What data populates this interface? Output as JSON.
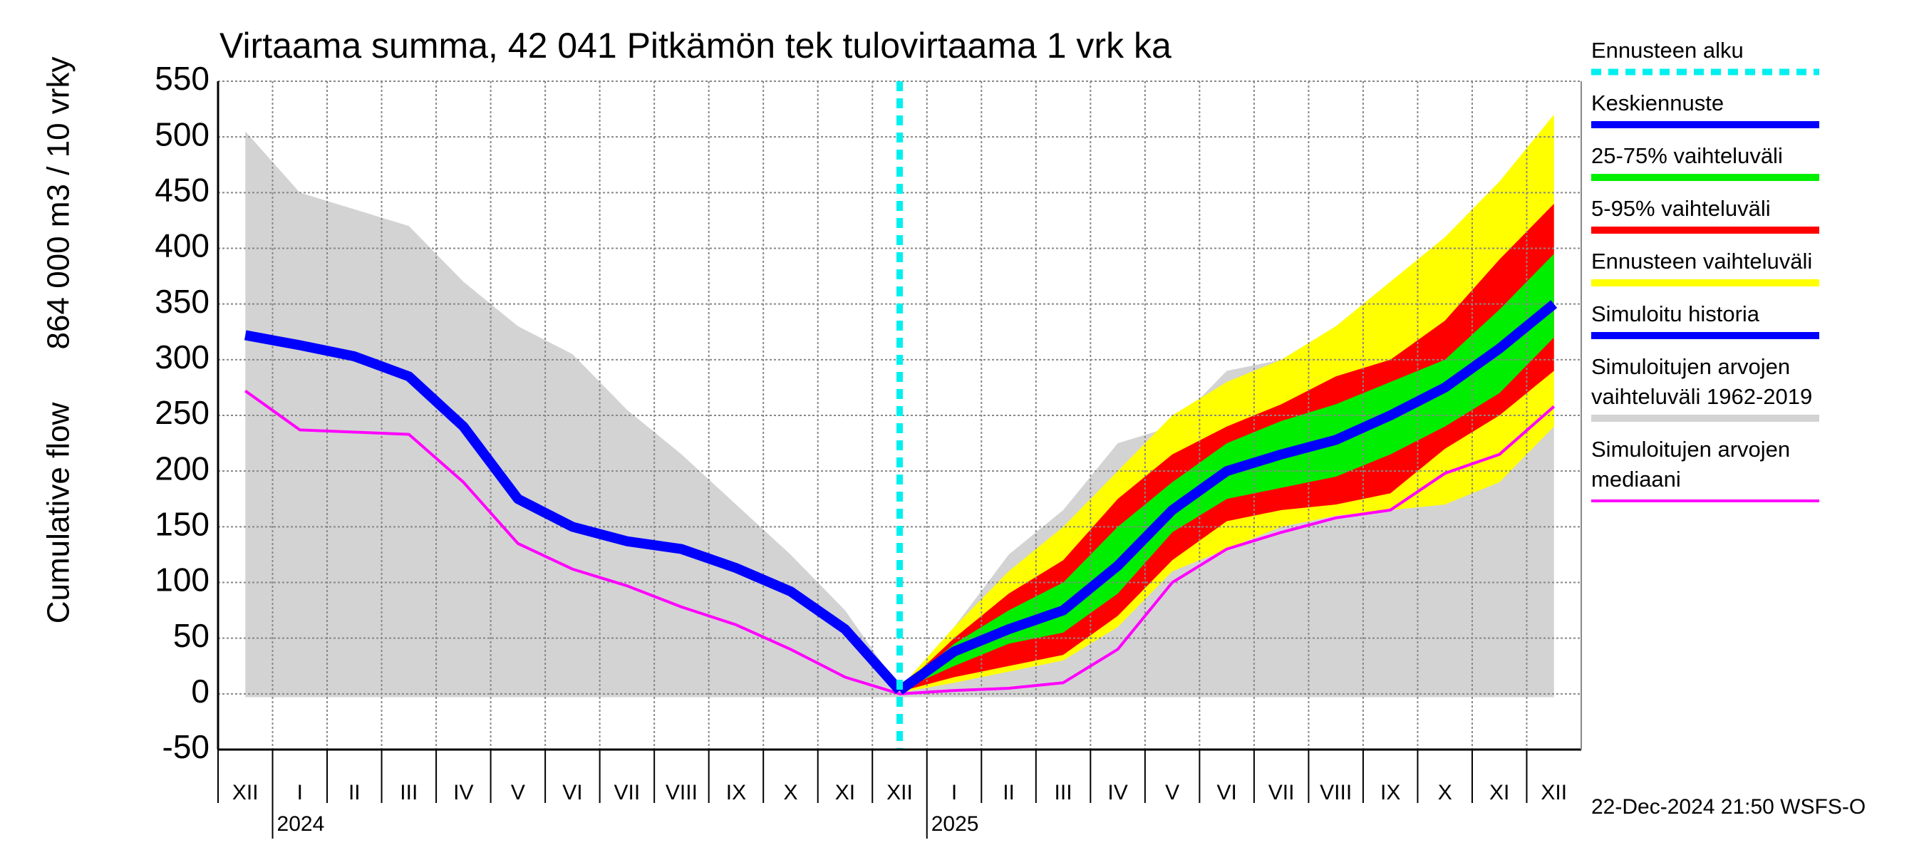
{
  "chart_data": {
    "type": "band-line",
    "title": "Virtaama summa, 42 041 Pitkämön tek tulovirtaama 1 vrk ka",
    "y_label": [
      "Cumulative flow",
      "864 000 m3 / 10 vrky"
    ],
    "footer": "22-Dec-2024 21:50 WSFS-O",
    "years": [
      "2024",
      "2025"
    ],
    "categories": [
      "XII",
      "I",
      "II",
      "III",
      "IV",
      "V",
      "VI",
      "VII",
      "VIII",
      "IX",
      "X",
      "XI",
      "XII",
      "I",
      "II",
      "III",
      "IV",
      "V",
      "VI",
      "VII",
      "VIII",
      "IX",
      "X",
      "XI",
      "XII"
    ],
    "ylim": [
      -50,
      550
    ],
    "yticks": [
      -50,
      0,
      50,
      100,
      150,
      200,
      250,
      300,
      350,
      400,
      450,
      500,
      550
    ],
    "grid": true,
    "series": [
      {
        "name": [
          "Ennusteen alku"
        ],
        "color": "#00f0f0"
      },
      {
        "name": [
          "Keskiennuste"
        ],
        "color": "#0000ff",
        "values": [
          null,
          null,
          null,
          null,
          null,
          null,
          null,
          null,
          null,
          null,
          null,
          null,
          3,
          38,
          58,
          75,
          115,
          165,
          200,
          215,
          228,
          250,
          275,
          310,
          350
        ]
      },
      {
        "name": [
          "25-75% vaihteluväli"
        ],
        "color": "#00ee00",
        "low": [
          null,
          null,
          null,
          null,
          null,
          null,
          null,
          null,
          null,
          null,
          null,
          null,
          3,
          25,
          45,
          55,
          90,
          145,
          175,
          185,
          195,
          215,
          240,
          270,
          320
        ],
        "high": [
          null,
          null,
          null,
          null,
          null,
          null,
          null,
          null,
          null,
          null,
          null,
          null,
          3,
          45,
          75,
          100,
          150,
          190,
          225,
          245,
          260,
          280,
          300,
          345,
          395
        ]
      },
      {
        "name": [
          "5-95% vaihteluväli"
        ],
        "color": "#ff0000",
        "low": [
          null,
          null,
          null,
          null,
          null,
          null,
          null,
          null,
          null,
          null,
          null,
          null,
          2,
          15,
          25,
          35,
          70,
          120,
          155,
          165,
          170,
          180,
          220,
          250,
          290
        ],
        "high": [
          null,
          null,
          null,
          null,
          null,
          null,
          null,
          null,
          null,
          null,
          null,
          null,
          4,
          50,
          90,
          120,
          175,
          215,
          240,
          260,
          285,
          300,
          335,
          390,
          440
        ]
      },
      {
        "name": [
          "Ennusteen vaihteluväli"
        ],
        "color": "#ffff00",
        "low": [
          null,
          null,
          null,
          null,
          null,
          null,
          null,
          null,
          null,
          null,
          null,
          null,
          1,
          10,
          20,
          30,
          60,
          110,
          130,
          150,
          160,
          165,
          170,
          190,
          240
        ],
        "high": [
          null,
          null,
          null,
          null,
          null,
          null,
          null,
          null,
          null,
          null,
          null,
          null,
          5,
          60,
          110,
          150,
          200,
          250,
          280,
          300,
          330,
          370,
          410,
          460,
          520
        ]
      },
      {
        "name": [
          "Simuloitu historia"
        ],
        "color": "#0000ff",
        "values": [
          322,
          313,
          303,
          285,
          240,
          175,
          150,
          137,
          130,
          113,
          92,
          58,
          3,
          null,
          null,
          null,
          null,
          null,
          null,
          null,
          null,
          null,
          null,
          null,
          null
        ]
      },
      {
        "name": [
          "Simuloitujen arvojen",
          "vaihteluväli 1962-2019"
        ],
        "color": "#d3d3d3",
        "low": [
          -3,
          -3,
          -3,
          -3,
          -3,
          -3,
          -3,
          -3,
          -3,
          -3,
          -3,
          -3,
          -3,
          -3,
          -3,
          -3,
          -3,
          -3,
          -3,
          -3,
          -3,
          -3,
          -3,
          -3,
          -3
        ],
        "high": [
          505,
          450,
          435,
          420,
          370,
          330,
          305,
          255,
          215,
          170,
          125,
          75,
          5,
          60,
          125,
          165,
          225,
          240,
          290,
          300,
          330,
          370,
          400,
          440,
          490
        ]
      },
      {
        "name": [
          "Simuloitujen arvojen",
          "mediaani"
        ],
        "color": "#ff00ff",
        "values": [
          272,
          237,
          235,
          233,
          190,
          135,
          112,
          97,
          78,
          62,
          40,
          15,
          0,
          3,
          5,
          10,
          40,
          100,
          130,
          145,
          158,
          165,
          198,
          215,
          258
        ]
      }
    ]
  }
}
